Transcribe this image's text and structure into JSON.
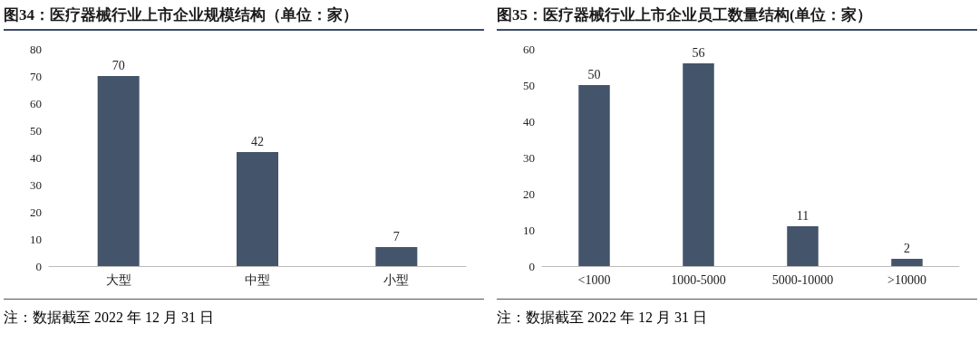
{
  "chart_data": [
    {
      "type": "bar",
      "title": "图34：医疗器械行业上市企业规模结构（单位：家）",
      "categories": [
        "大型",
        "中型",
        "小型"
      ],
      "values": [
        70,
        42,
        7
      ],
      "color": "#44546a",
      "ylim": [
        0,
        80
      ],
      "yticks": [
        0,
        10,
        20,
        30,
        40,
        50,
        60,
        70,
        80
      ],
      "grid": false,
      "data_labels": true,
      "annotations": [
        "注：数据截至 2022 年 12 月 31 日"
      ]
    },
    {
      "type": "bar",
      "title": "图35：医疗器械行业上市企业员工数量结构(单位：家）",
      "categories": [
        "<1000",
        "1000-5000",
        "5000-10000",
        ">10000"
      ],
      "values": [
        50,
        56,
        11,
        2
      ],
      "color": "#44546a",
      "ylim": [
        0,
        60
      ],
      "yticks": [
        0,
        10,
        20,
        30,
        40,
        50,
        60
      ],
      "grid": false,
      "data_labels": true,
      "annotations": [
        "注：数据截至 2022 年 12 月 31 日"
      ]
    }
  ]
}
